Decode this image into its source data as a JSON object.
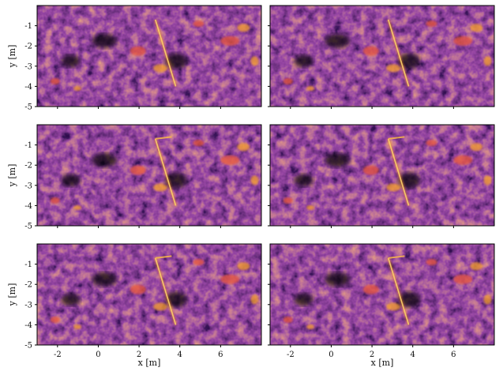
{
  "chart_data": {
    "type": "heatmap",
    "layout": {
      "rows": 3,
      "cols": 2
    },
    "colormap": "inferno",
    "colors": {
      "low": "#000004",
      "mid": "#781c6d",
      "high": "#fcffa4",
      "frame": "#000000"
    },
    "xlabel": "x [m]",
    "ylabel": "y [m]",
    "xlim": [
      -3.0,
      8.0
    ],
    "ylim": [
      -5.0,
      0.0
    ],
    "xticks": [
      -2,
      0,
      2,
      4,
      6
    ],
    "yticks": [
      -1,
      -2,
      -3,
      -4,
      -5
    ],
    "xtick_labels": [
      "-2",
      "0",
      "2",
      "4",
      "6"
    ],
    "ytick_labels": [
      "-1",
      "-2",
      "-3",
      "-4",
      "-5"
    ],
    "panels": [
      {
        "row": 0,
        "col": 0,
        "ylabel": "y [m]",
        "xlabel": ""
      },
      {
        "row": 0,
        "col": 1,
        "ylabel": "",
        "xlabel": ""
      },
      {
        "row": 1,
        "col": 0,
        "ylabel": "y [m]",
        "xlabel": ""
      },
      {
        "row": 1,
        "col": 1,
        "ylabel": "",
        "xlabel": ""
      },
      {
        "row": 2,
        "col": 0,
        "ylabel": "y [m]",
        "xlabel": "x [m]"
      },
      {
        "row": 2,
        "col": 1,
        "ylabel": "",
        "xlabel": "x [m]"
      }
    ]
  }
}
